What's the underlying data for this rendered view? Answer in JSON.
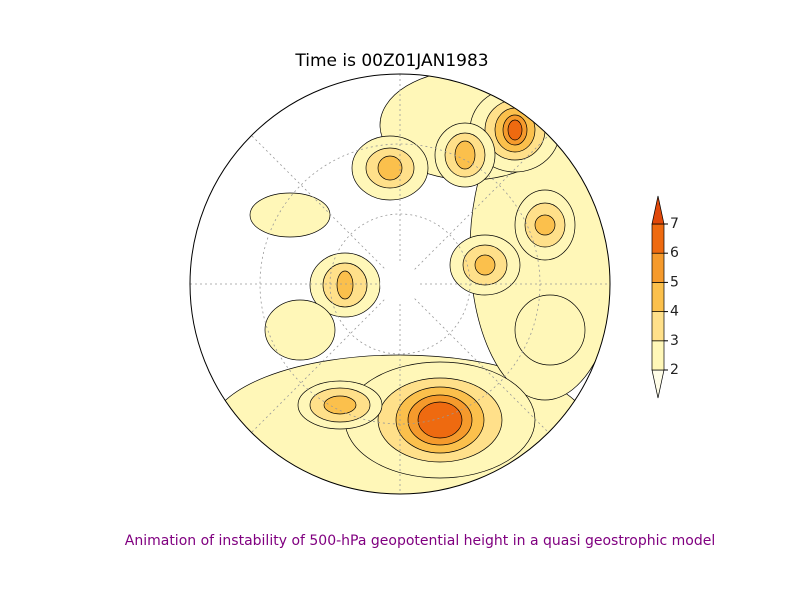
{
  "title": "Time is 00Z01JAN1983",
  "colorbar": {
    "levels": [
      2,
      3,
      4,
      5,
      6,
      7
    ],
    "colors": [
      "#fffde8",
      "#fff7b8",
      "#ffe08a",
      "#fbc04c",
      "#f59a2c",
      "#ee6a10",
      "#e0480a"
    ]
  },
  "caption": "Animation of instability of 500-hPa geopotential height in a quasi geostrophic model"
}
